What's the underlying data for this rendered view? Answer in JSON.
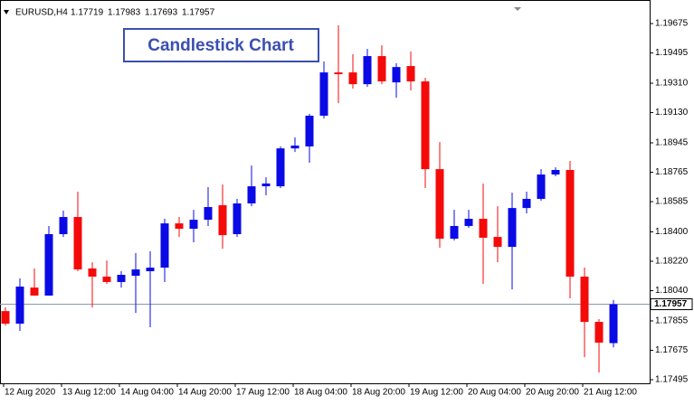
{
  "chart_data": {
    "type": "candlestick",
    "header": "EURUSD,H4",
    "header_values": [
      1.17719,
      1.17983,
      1.17693,
      1.17957
    ],
    "title": "Candlestick Chart",
    "categories": [
      "12 Aug 2020",
      null,
      null,
      null,
      "13 Aug 12:00",
      null,
      null,
      null,
      "14 Aug 04:00",
      null,
      null,
      null,
      "14 Aug 20:00",
      null,
      null,
      null,
      "17 Aug 12:00",
      null,
      null,
      null,
      "18 Aug 04:00",
      null,
      null,
      null,
      "18 Aug 20:00",
      null,
      null,
      null,
      "19 Aug 12:00",
      null,
      null,
      null,
      "20 Aug 04:00",
      null,
      null,
      null,
      "20 Aug 20:00",
      null,
      null,
      null,
      "21 Aug 12:00",
      null,
      null
    ],
    "open": [
      1.17915,
      1.17838,
      1.18059,
      1.1801,
      1.18386,
      1.18491,
      1.18176,
      1.18126,
      1.18093,
      1.18131,
      1.18159,
      1.18181,
      1.18452,
      1.18419,
      1.18474,
      1.18563,
      1.18386,
      1.18574,
      1.18679,
      1.18679,
      1.18911,
      1.18923,
      1.19111,
      1.19376,
      1.19376,
      1.19304,
      1.19476,
      1.19315,
      1.19415,
      1.19321,
      1.18784,
      1.18358,
      1.18436,
      1.1848,
      1.18369,
      1.18308,
      1.18546,
      1.18602,
      1.18751,
      1.18779,
      1.18126,
      1.17849,
      1.17719
    ],
    "high": [
      1.17938,
      1.18115,
      1.18176,
      1.18436,
      1.1853,
      1.18646,
      1.18214,
      1.18225,
      1.18159,
      1.1827,
      1.18281,
      1.1848,
      1.18491,
      1.18535,
      1.18674,
      1.1869,
      1.18602,
      1.18806,
      1.18734,
      1.18923,
      1.18978,
      1.19122,
      1.19443,
      1.19664,
      1.19487,
      1.1952,
      1.19542,
      1.19432,
      1.19504,
      1.19343,
      1.1895,
      1.18535,
      1.18535,
      1.18696,
      1.18557,
      1.1864,
      1.18646,
      1.18784,
      1.18795,
      1.18834,
      1.18181,
      1.17866,
      1.17983
    ],
    "low": [
      1.17827,
      1.17794,
      1.1801,
      1.1801,
      1.18369,
      1.18159,
      1.17938,
      1.18082,
      1.18059,
      1.17904,
      1.17816,
      1.18093,
      1.18369,
      1.18336,
      1.18436,
      1.18297,
      1.18369,
      1.18557,
      1.18624,
      1.18668,
      1.18889,
      1.18823,
      1.19094,
      1.19188,
      1.19277,
      1.19288,
      1.19304,
      1.19221,
      1.19266,
      1.18668,
      1.18303,
      1.18347,
      1.18425,
      1.18082,
      1.18214,
      1.18048,
      1.18513,
      1.18591,
      1.1874,
      1.17993,
      1.17633,
      1.17539,
      1.17693
    ],
    "close": [
      1.17838,
      1.18065,
      1.1801,
      1.18386,
      1.18491,
      1.1817,
      1.18126,
      1.18093,
      1.18137,
      1.1817,
      1.18181,
      1.18452,
      1.18419,
      1.18474,
      1.18552,
      1.1838,
      1.18574,
      1.18679,
      1.18696,
      1.18911,
      1.18928,
      1.19111,
      1.19376,
      1.19365,
      1.19304,
      1.19476,
      1.19321,
      1.19409,
      1.19321,
      1.18784,
      1.18358,
      1.18436,
      1.1848,
      1.18364,
      1.18308,
      1.18546,
      1.18602,
      1.18751,
      1.18779,
      1.18126,
      1.17849,
      1.17722,
      1.17957
    ],
    "bull_color": "#0a0ae6",
    "bear_color": "#f50a0a",
    "current_price": 1.17957,
    "ylim": [
      1.17473,
      1.19775
    ],
    "yticks": [
      {
        "value": 1.17495,
        "label": "1.17495"
      },
      {
        "value": 1.17675,
        "label": "1.17675"
      },
      {
        "value": 1.17855,
        "label": "1.17855"
      },
      {
        "value": 1.1804,
        "label": "1.18040"
      },
      {
        "value": 1.1822,
        "label": "1.18220"
      },
      {
        "value": 1.184,
        "label": "1.18400"
      },
      {
        "value": 1.18585,
        "label": "1.18585"
      },
      {
        "value": 1.18765,
        "label": "1.18765"
      },
      {
        "value": 1.18945,
        "label": "1.18945"
      },
      {
        "value": 1.1913,
        "label": "1.19130"
      },
      {
        "value": 1.1931,
        "label": "1.19310"
      },
      {
        "value": 1.19495,
        "label": "1.19495"
      },
      {
        "value": 1.19675,
        "label": "1.19675"
      }
    ],
    "grid": false
  }
}
